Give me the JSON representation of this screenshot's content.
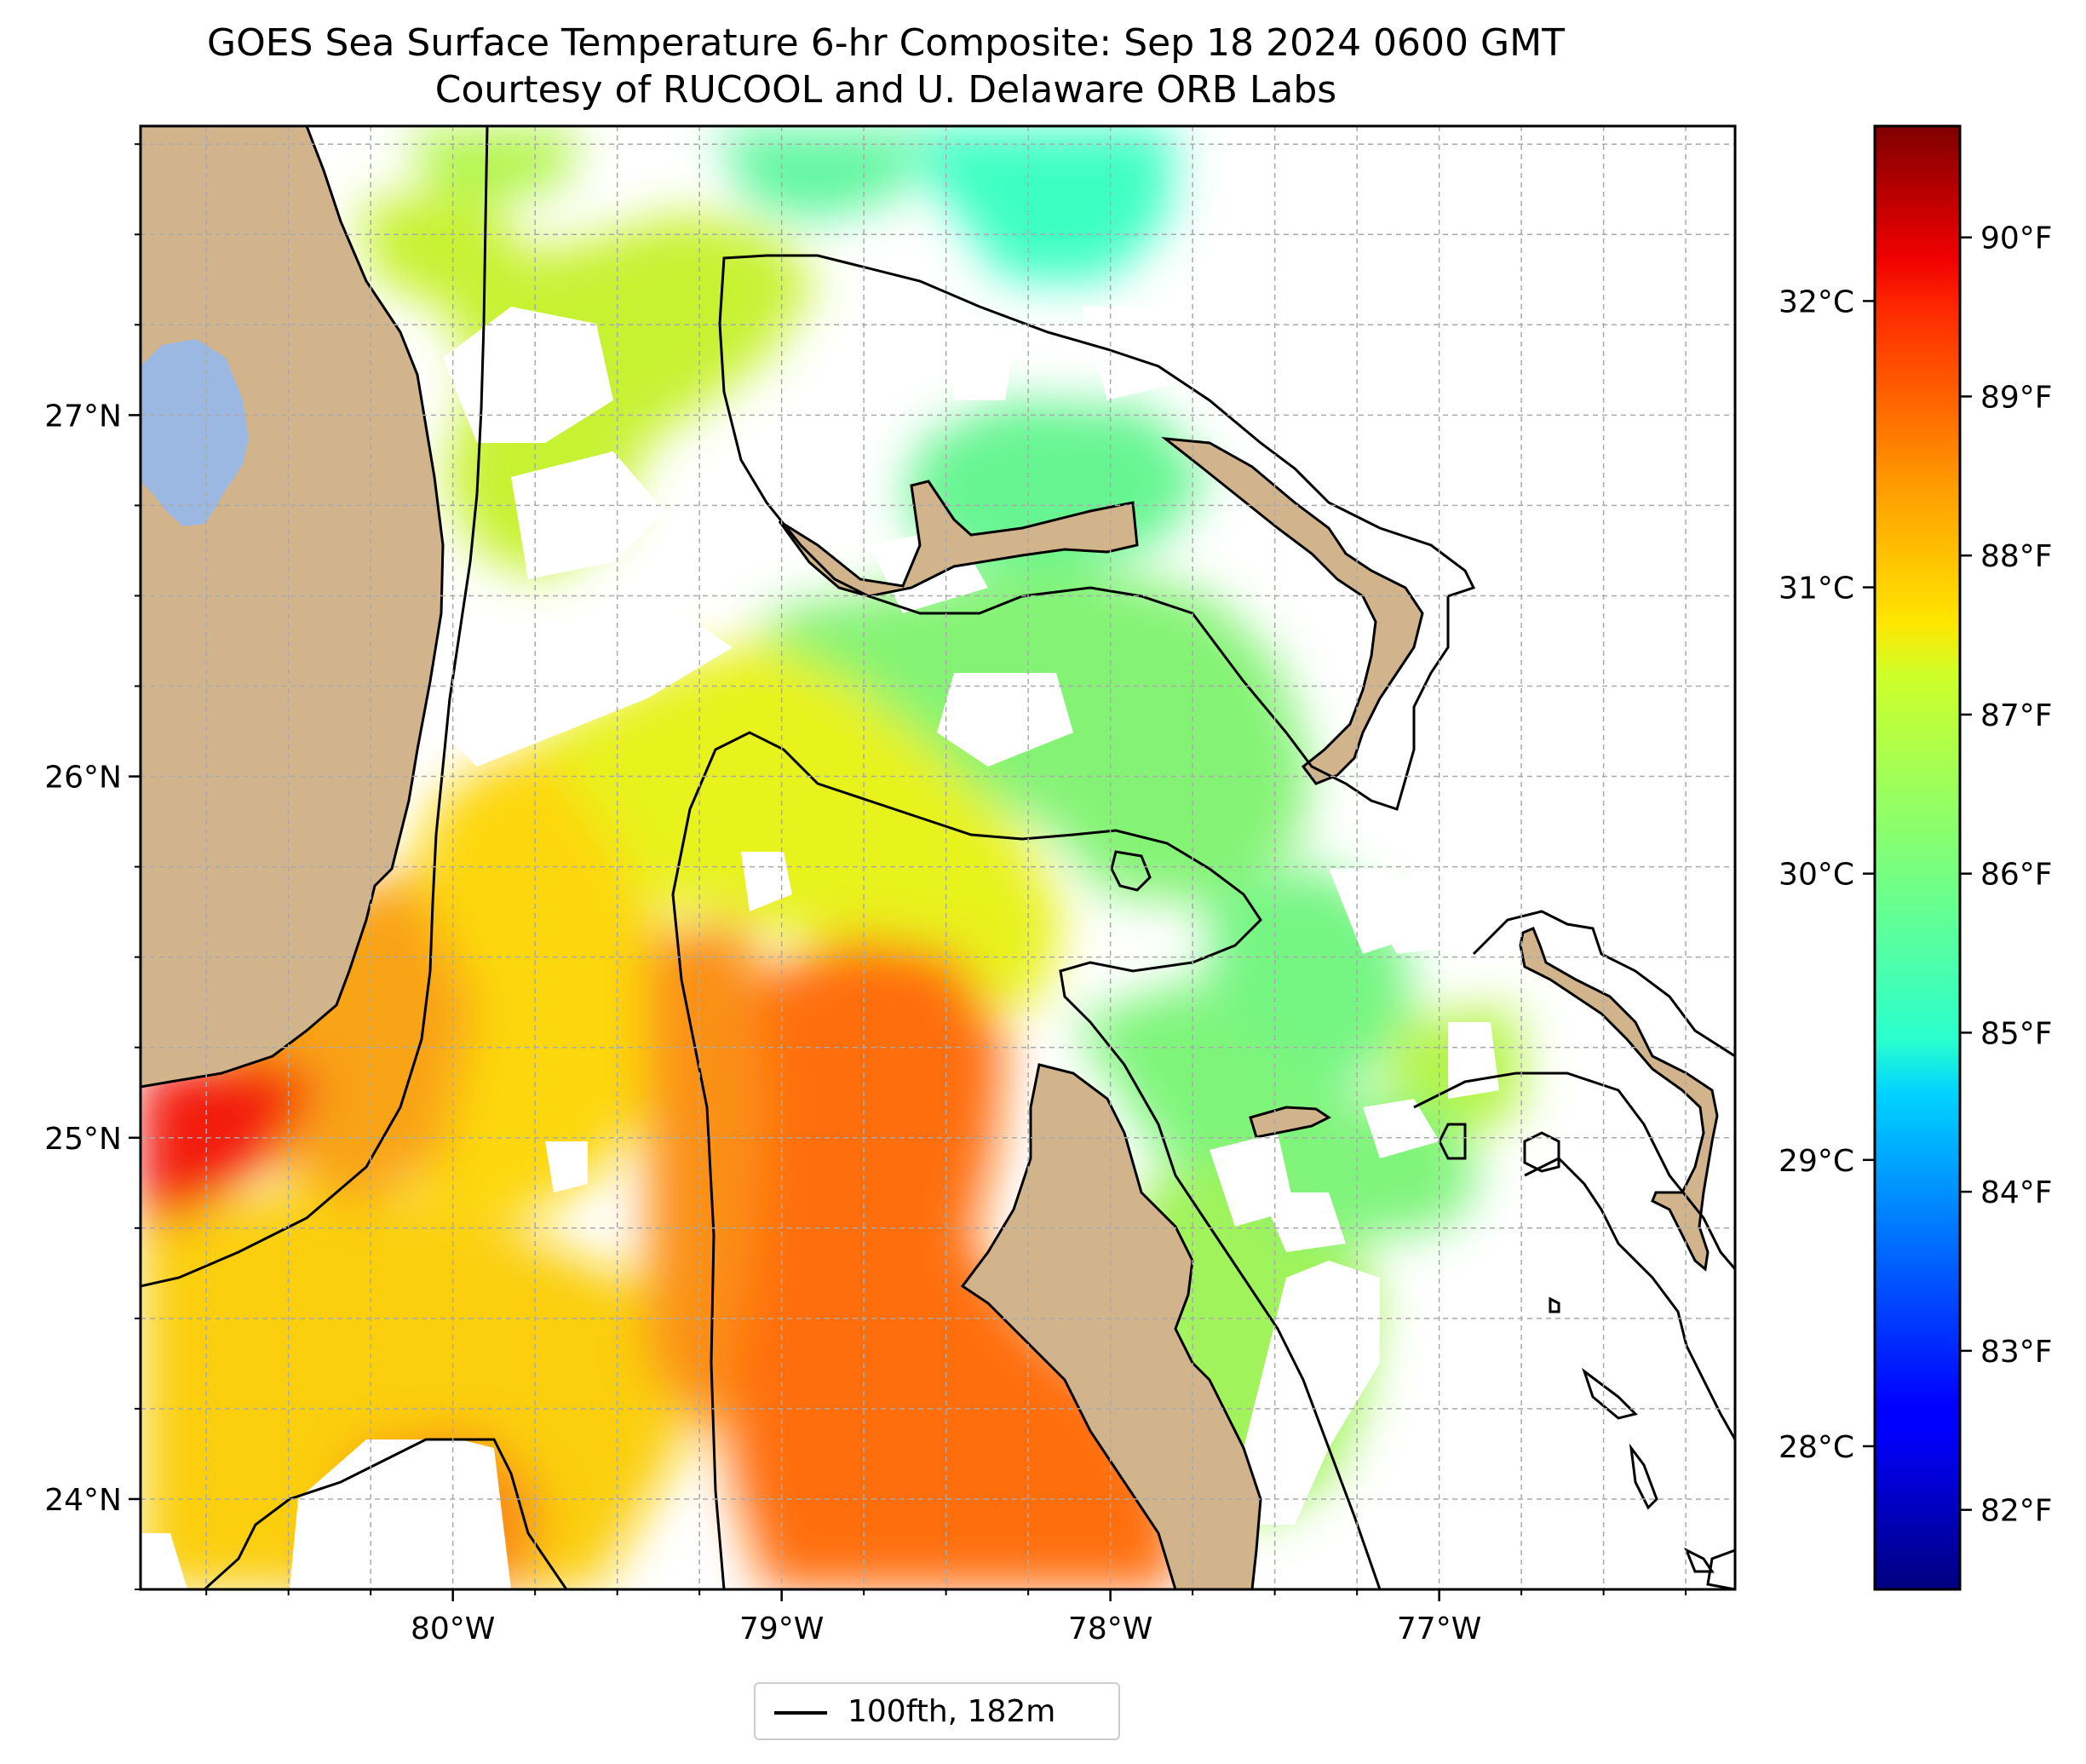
{
  "title": {
    "line1": "GOES Sea Surface Temperature 6-hr Composite: Sep 18 2024 0600 GMT",
    "line2": "Courtesy of RUCOOL and U. Delaware ORB Labs"
  },
  "map": {
    "lon_range": [
      -80.95,
      -76.1
    ],
    "lat_range": [
      23.75,
      27.8
    ],
    "lon_ticks": [
      {
        "value": -80,
        "label": "80°W"
      },
      {
        "value": -79,
        "label": "79°W"
      },
      {
        "value": -78,
        "label": "78°W"
      },
      {
        "value": -77,
        "label": "77°W"
      }
    ],
    "lat_ticks": [
      {
        "value": 24,
        "label": "24°N"
      },
      {
        "value": 25,
        "label": "25°N"
      },
      {
        "value": 26,
        "label": "26°N"
      },
      {
        "value": 27,
        "label": "27°N"
      }
    ],
    "gridlines": true,
    "colors": {
      "land": "#d2b48c",
      "lake": "#9bb8e3",
      "no_data": "#ffffff"
    }
  },
  "colorbar": {
    "colormap": "jet",
    "range_f": [
      81.5,
      90.7
    ],
    "celsius_ticks": [
      {
        "value": 28,
        "label": "28°C"
      },
      {
        "value": 29,
        "label": "29°C"
      },
      {
        "value": 30,
        "label": "30°C"
      },
      {
        "value": 31,
        "label": "31°C"
      },
      {
        "value": 32,
        "label": "32°C"
      }
    ],
    "fahrenheit_ticks": [
      {
        "value": 82,
        "label": "82°F"
      },
      {
        "value": 83,
        "label": "83°F"
      },
      {
        "value": 84,
        "label": "84°F"
      },
      {
        "value": 85,
        "label": "85°F"
      },
      {
        "value": 86,
        "label": "86°F"
      },
      {
        "value": 87,
        "label": "87°F"
      },
      {
        "value": 88,
        "label": "88°F"
      },
      {
        "value": 89,
        "label": "89°F"
      },
      {
        "value": 90,
        "label": "90°F"
      }
    ]
  },
  "legend": {
    "label": "100fth, 182m",
    "line_color": "#000000",
    "placement": "bottom-center"
  }
}
